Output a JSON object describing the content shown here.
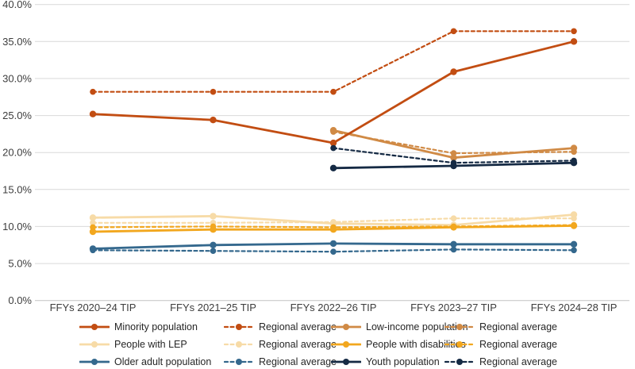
{
  "chart_data": {
    "type": "line",
    "title": "",
    "categories": [
      "FFYs 2020–24 TIP",
      "FFYs 2021–25 TIP",
      "FFYs 2022–26 TIP",
      "FFYs 2023–27 TIP",
      "FFYs 2024–28 TIP"
    ],
    "y_axis": {
      "min": 0,
      "max": 40,
      "step": 5,
      "ticks": [
        {
          "value": 0,
          "label": "0.0%"
        },
        {
          "value": 5,
          "label": "5.0%"
        },
        {
          "value": 10,
          "label": "10.0%"
        },
        {
          "value": 15,
          "label": "15.0%"
        },
        {
          "value": 20,
          "label": "20.0%"
        },
        {
          "value": 25,
          "label": "25.0%"
        },
        {
          "value": 30,
          "label": "30.0%"
        },
        {
          "value": 35,
          "label": "35.0%"
        },
        {
          "value": 40,
          "label": "40.0%"
        }
      ]
    },
    "grid": true,
    "legend_position": "bottom",
    "series": [
      {
        "key": "minority-population",
        "label": "Minority population",
        "style": "solid",
        "color": "#C24D12",
        "values": [
          25.2,
          24.4,
          21.3,
          30.9,
          35.0
        ]
      },
      {
        "key": "minority-regional-average",
        "label": "Regional average",
        "style": "dashed",
        "color": "#C24D12",
        "values": [
          28.2,
          28.2,
          28.2,
          36.4,
          36.4
        ]
      },
      {
        "key": "low-income-population",
        "label": "Low-income population",
        "style": "solid",
        "color": "#D08A45",
        "values": [
          null,
          null,
          23.0,
          19.3,
          20.6
        ]
      },
      {
        "key": "low-income-regional-average",
        "label": "Regional average",
        "style": "dashed",
        "color": "#D08A45",
        "values": [
          null,
          null,
          22.8,
          19.9,
          20.1
        ]
      },
      {
        "key": "people-with-lep",
        "label": "People with LEP",
        "style": "solid",
        "color": "#F7DBA7",
        "values": [
          11.2,
          11.4,
          10.4,
          10.2,
          11.6
        ]
      },
      {
        "key": "lep-regional-average",
        "label": "Regional average",
        "style": "dashed",
        "color": "#F7DBA7",
        "values": [
          10.5,
          10.5,
          10.6,
          11.1,
          11.1
        ]
      },
      {
        "key": "people-with-disabilities",
        "label": "People with disabilities",
        "style": "solid",
        "color": "#F2A71E",
        "values": [
          9.3,
          9.6,
          9.6,
          9.9,
          10.1
        ]
      },
      {
        "key": "disabilities-regional-average",
        "label": "Regional average",
        "style": "dashed",
        "color": "#F2A71E",
        "values": [
          9.9,
          10.0,
          9.9,
          10.0,
          10.2
        ]
      },
      {
        "key": "older-adult-population",
        "label": "Older adult population",
        "style": "solid",
        "color": "#34688D",
        "values": [
          7.0,
          7.5,
          7.7,
          7.6,
          7.6
        ]
      },
      {
        "key": "older-adult-regional-average",
        "label": "Regional average",
        "style": "dashed",
        "color": "#34688D",
        "values": [
          6.8,
          6.7,
          6.6,
          6.9,
          6.8
        ]
      },
      {
        "key": "youth-population",
        "label": "Youth population",
        "style": "solid",
        "color": "#152A44",
        "values": [
          null,
          null,
          17.9,
          18.2,
          18.6
        ]
      },
      {
        "key": "youth-regional-average",
        "label": "Regional average",
        "style": "dashed",
        "color": "#152A44",
        "values": [
          null,
          null,
          20.6,
          18.6,
          18.9
        ]
      }
    ],
    "colors": {
      "gridline": "#D9D9D9",
      "zero_line": "#C4C4C4",
      "axis_text": "#3D3D3D",
      "legend_text": "#262626",
      "background": "#FFFFFF"
    }
  }
}
